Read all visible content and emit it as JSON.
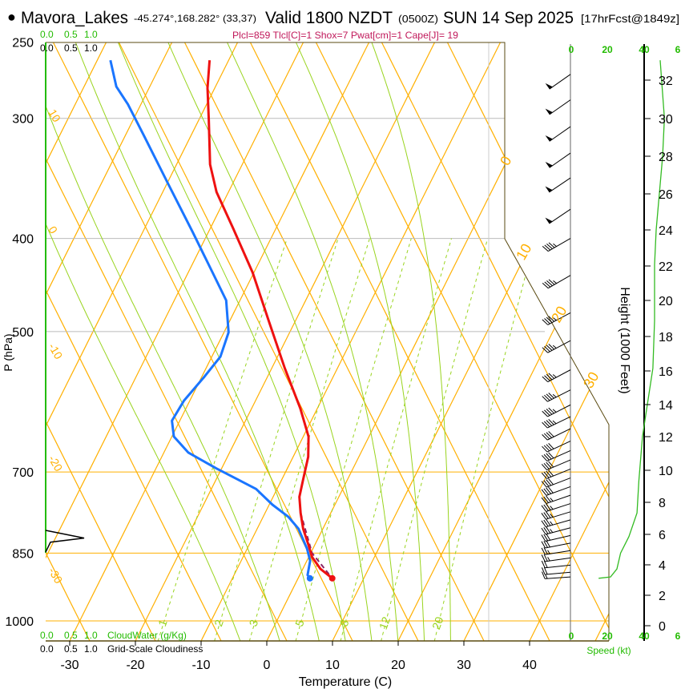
{
  "header": {
    "bullet": "●",
    "station": "Mavora_Lakes",
    "coords": "-45.274°,168.282° (33,37)",
    "valid": "Valid 1800 NZDT",
    "utc": "(0500Z)",
    "date": "SUN 14 Sep 2025",
    "forecast": "[17hrFcst@1849z]"
  },
  "indices": "Plcl=859 Tlcl[C]=1 Shox=7 Pwat[cm]=1 Cape[J]= 19",
  "colors": {
    "temperature": "#ee1111",
    "dewpoint": "#1a75ff",
    "parcel": "#882266",
    "isotherm": "#ffb000",
    "moist": "#99d41e",
    "cloudwater": "#22bb00",
    "speed": "#33bb22",
    "indices": "#c0185a"
  },
  "scales": {
    "cloudwater_top": [
      "0.0",
      "0.5",
      "1.0"
    ],
    "cloudiness_top": [
      "0.0",
      "0.5",
      "1.0"
    ],
    "cloudwater_bottom": [
      "0.0",
      "0.5",
      "1.0"
    ],
    "cloudwater_label": "CloudWater (g/Kg)",
    "cloudiness_bottom": [
      "0.0",
      "0.5",
      "1.0"
    ],
    "cloudiness_label": "Grid-Scale Cloudiness",
    "speed_top": [
      "0",
      "20",
      "40",
      "6"
    ],
    "speed_bottom": [
      "0",
      "20",
      "40",
      "6"
    ],
    "speed_label": "Speed (kt)"
  },
  "chart_data": {
    "type": "line",
    "subtype": "skew-T log-P sounding",
    "xlabel": "Temperature (C)",
    "ylabel": "P (hPa)",
    "y2label": "Height (1000 Feet)",
    "pressure_ticks": [
      "250",
      "300",
      "400",
      "500",
      "700",
      "850",
      "1000"
    ],
    "temp_ticks": [
      "-30",
      "-20",
      "-10",
      "0",
      "10",
      "20",
      "30",
      "40"
    ],
    "height_ticks": [
      "0",
      "2",
      "4",
      "6",
      "8",
      "10",
      "12",
      "14",
      "16",
      "18",
      "20",
      "22",
      "24",
      "26",
      "28",
      "30",
      "32"
    ],
    "mixing_ratio_labels": [
      "1",
      "2",
      "3",
      "5",
      "8",
      "12",
      "20"
    ],
    "isotherm_labels": [
      "0",
      "10",
      "20",
      "30"
    ],
    "adiabat_labels": [
      "10",
      "0",
      "-10",
      "-20",
      "-30"
    ],
    "temperature": [
      [
        261,
        -52.9
      ],
      [
        279,
        -51.1
      ],
      [
        301,
        -48.5
      ],
      [
        335,
        -44.9
      ],
      [
        358,
        -41.8
      ],
      [
        390,
        -36.6
      ],
      [
        434,
        -30.2
      ],
      [
        487,
        -24.1
      ],
      [
        546,
        -18.0
      ],
      [
        601,
        -12.6
      ],
      [
        643,
        -9.2
      ],
      [
        675,
        -7.7
      ],
      [
        715,
        -6.7
      ],
      [
        743,
        -6.0
      ],
      [
        772,
        -4.6
      ],
      [
        802,
        -3.0
      ],
      [
        833,
        -1.0
      ],
      [
        858,
        0.5
      ],
      [
        883,
        2.7
      ],
      [
        903,
        5.2
      ]
    ],
    "dewpoint": [
      [
        261,
        -68.0
      ],
      [
        278,
        -65.1
      ],
      [
        290,
        -62.0
      ],
      [
        313,
        -57.1
      ],
      [
        351,
        -49.8
      ],
      [
        394,
        -42.4
      ],
      [
        434,
        -36.3
      ],
      [
        464,
        -32.1
      ],
      [
        501,
        -29.3
      ],
      [
        531,
        -28.7
      ],
      [
        557,
        -29.6
      ],
      [
        590,
        -30.9
      ],
      [
        619,
        -31.2
      ],
      [
        643,
        -29.7
      ],
      [
        668,
        -26.3
      ],
      [
        694,
        -20.8
      ],
      [
        715,
        -16.2
      ],
      [
        729,
        -13.2
      ],
      [
        757,
        -9.5
      ],
      [
        779,
        -6.2
      ],
      [
        802,
        -3.7
      ],
      [
        841,
        -0.9
      ],
      [
        866,
        0.5
      ],
      [
        896,
        1.2
      ],
      [
        903,
        1.8
      ]
    ],
    "parcel": [
      [
        772,
        -4.6
      ],
      [
        850,
        0.2
      ],
      [
        903,
        5.2
      ]
    ],
    "wind": [
      {
        "p": 270,
        "dir": 235,
        "spd": 50
      },
      {
        "p": 287,
        "dir": 235,
        "spd": 50
      },
      {
        "p": 306,
        "dir": 235,
        "spd": 50
      },
      {
        "p": 326,
        "dir": 235,
        "spd": 50
      },
      {
        "p": 346,
        "dir": 236,
        "spd": 50
      },
      {
        "p": 373,
        "dir": 236,
        "spd": 50
      },
      {
        "p": 400,
        "dir": 240,
        "spd": 45
      },
      {
        "p": 437,
        "dir": 240,
        "spd": 45
      },
      {
        "p": 478,
        "dir": 242,
        "spd": 45
      },
      {
        "p": 511,
        "dir": 242,
        "spd": 45
      },
      {
        "p": 548,
        "dir": 242,
        "spd": 45
      },
      {
        "p": 575,
        "dir": 243,
        "spd": 45
      },
      {
        "p": 596,
        "dir": 243,
        "spd": 45
      },
      {
        "p": 613,
        "dir": 244,
        "spd": 45
      },
      {
        "p": 631,
        "dir": 244,
        "spd": 40
      },
      {
        "p": 650,
        "dir": 245,
        "spd": 40
      },
      {
        "p": 665,
        "dir": 246,
        "spd": 40
      },
      {
        "p": 680,
        "dir": 247,
        "spd": 40
      },
      {
        "p": 695,
        "dir": 248,
        "spd": 40
      },
      {
        "p": 710,
        "dir": 249,
        "spd": 40
      },
      {
        "p": 725,
        "dir": 250,
        "spd": 40
      },
      {
        "p": 740,
        "dir": 251,
        "spd": 35
      },
      {
        "p": 755,
        "dir": 252,
        "spd": 35
      },
      {
        "p": 770,
        "dir": 253,
        "spd": 35
      },
      {
        "p": 785,
        "dir": 254,
        "spd": 35
      },
      {
        "p": 800,
        "dir": 255,
        "spd": 35
      },
      {
        "p": 815,
        "dir": 257,
        "spd": 30
      },
      {
        "p": 830,
        "dir": 259,
        "spd": 30
      },
      {
        "p": 845,
        "dir": 261,
        "spd": 25
      },
      {
        "p": 860,
        "dir": 262,
        "spd": 25
      },
      {
        "p": 875,
        "dir": 264,
        "spd": 20
      },
      {
        "p": 890,
        "dir": 265,
        "spd": 20
      },
      {
        "p": 900,
        "dir": 266,
        "spd": 15
      }
    ],
    "wind_speed_profile": [
      [
        261,
        48.7
      ],
      [
        300,
        51
      ],
      [
        329,
        50
      ],
      [
        392,
        46.5
      ],
      [
        426,
        45.6
      ],
      [
        487,
        45.6
      ],
      [
        546,
        44.7
      ],
      [
        643,
        39
      ],
      [
        715,
        37
      ],
      [
        772,
        36
      ],
      [
        817,
        31.6
      ],
      [
        850,
        27
      ],
      [
        883,
        25
      ],
      [
        900,
        21.5
      ],
      [
        903,
        15
      ]
    ],
    "cloudiness": [
      [
        805,
        0.0
      ],
      [
        820,
        0.8
      ],
      [
        828,
        0.1
      ],
      [
        848,
        0.0
      ]
    ]
  }
}
